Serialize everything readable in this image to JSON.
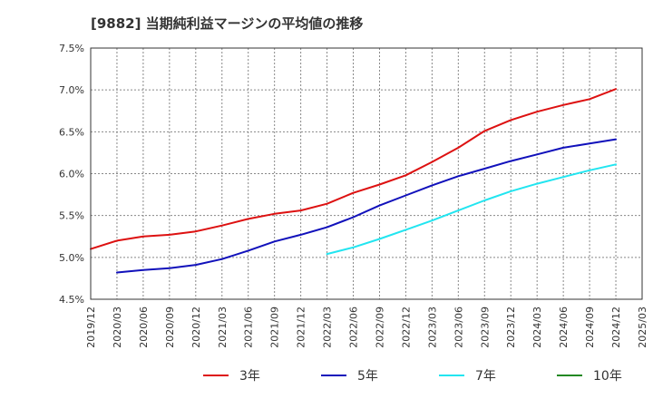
{
  "chart_data": {
    "type": "line",
    "title": "[9882]  当期純利益マージンの平均値の推移",
    "ylim": [
      4.5,
      7.5
    ],
    "yticks": [
      "4.5%",
      "5.0%",
      "5.5%",
      "6.0%",
      "6.5%",
      "7.0%",
      "7.5%"
    ],
    "xticks": [
      "2019/12",
      "2020/03",
      "2020/06",
      "2020/09",
      "2020/12",
      "2021/03",
      "2021/06",
      "2021/09",
      "2021/12",
      "2022/03",
      "2022/06",
      "2022/09",
      "2022/12",
      "2023/03",
      "2023/06",
      "2023/09",
      "2023/12",
      "2024/03",
      "2024/06",
      "2024/09",
      "2024/12",
      "2025/03"
    ],
    "grid": true,
    "legend_position": "bottom",
    "series": [
      {
        "name": "3年",
        "color": "#dd1111",
        "x": [
          "2019/12",
          "2020/03",
          "2020/06",
          "2020/09",
          "2020/12",
          "2021/03",
          "2021/06",
          "2021/09",
          "2021/12",
          "2022/03",
          "2022/06",
          "2022/09",
          "2022/12",
          "2023/03",
          "2023/06",
          "2023/09",
          "2023/12",
          "2024/03",
          "2024/06",
          "2024/09",
          "2024/12"
        ],
        "values": [
          5.1,
          5.2,
          5.25,
          5.27,
          5.31,
          5.38,
          5.46,
          5.52,
          5.56,
          5.64,
          5.77,
          5.87,
          5.98,
          6.14,
          6.31,
          6.51,
          6.64,
          6.74,
          6.82,
          6.89,
          7.01
        ]
      },
      {
        "name": "5年",
        "color": "#1111bb",
        "x": [
          "2020/03",
          "2020/06",
          "2020/09",
          "2020/12",
          "2021/03",
          "2021/06",
          "2021/09",
          "2021/12",
          "2022/03",
          "2022/06",
          "2022/09",
          "2022/12",
          "2023/03",
          "2023/06",
          "2023/09",
          "2023/12",
          "2024/03",
          "2024/06",
          "2024/09",
          "2024/12"
        ],
        "values": [
          4.82,
          4.85,
          4.87,
          4.91,
          4.98,
          5.08,
          5.19,
          5.27,
          5.36,
          5.48,
          5.62,
          5.74,
          5.86,
          5.97,
          6.06,
          6.15,
          6.23,
          6.31,
          6.36,
          6.41
        ]
      },
      {
        "name": "7年",
        "color": "#22e5f0",
        "x": [
          "2022/03",
          "2022/06",
          "2022/09",
          "2022/12",
          "2023/03",
          "2023/06",
          "2023/09",
          "2023/12",
          "2024/03",
          "2024/06",
          "2024/09",
          "2024/12"
        ],
        "values": [
          5.04,
          5.12,
          5.22,
          5.33,
          5.44,
          5.56,
          5.68,
          5.79,
          5.88,
          5.96,
          6.04,
          6.11
        ]
      },
      {
        "name": "10年",
        "color": "#228822",
        "x": [],
        "values": []
      }
    ]
  }
}
